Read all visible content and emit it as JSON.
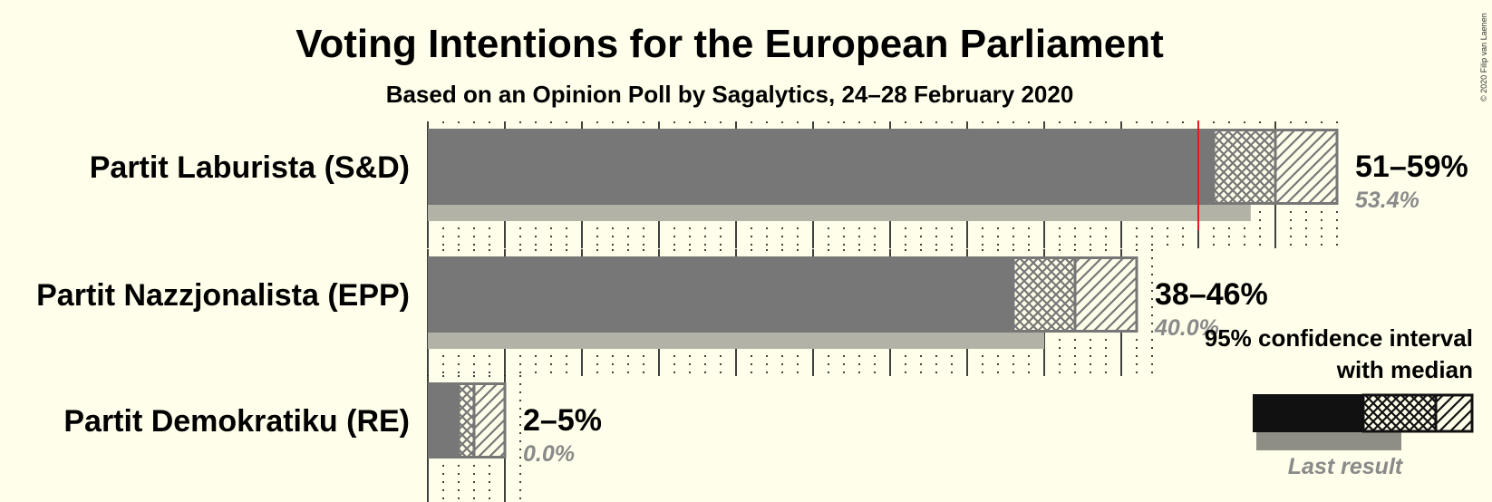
{
  "chart_data": {
    "type": "bar",
    "title": "Voting Intentions for the European Parliament",
    "subtitle": "Based on an Opinion Poll by Sagalytics, 24–28 February 2020",
    "xlim": [
      0,
      59.5
    ],
    "tick_step": 5,
    "majority_line": 50,
    "series": [
      {
        "name": "Partit Laburista (S&D)",
        "ci_low": 51,
        "median": 55,
        "ci_high": 59,
        "range_label": "51–59%",
        "last_result": 53.4,
        "last_label": "53.4%"
      },
      {
        "name": "Partit Nazzjonalista (EPP)",
        "ci_low": 38,
        "median": 42,
        "ci_high": 46,
        "range_label": "38–46%",
        "last_result": 40.0,
        "last_label": "40.0%"
      },
      {
        "name": "Partit Demokratiku (RE)",
        "ci_low": 2,
        "median": 3,
        "ci_high": 5,
        "range_label": "2–5%",
        "last_result": 0.0,
        "last_label": "0.0%"
      }
    ],
    "colors": {
      "bar": "#777777",
      "last_result": "#B3B2A6",
      "majority": "#E11B22",
      "legend_solid": "#111111",
      "legend_last": "#8E8E85",
      "background": "#FFFEEA"
    },
    "legend": {
      "heading_lines": [
        "95% confidence interval",
        "with median"
      ],
      "last_result_label": "Last result",
      "placement": "bottom-right"
    },
    "copyright": "© 2020 Filip van Laenen"
  }
}
